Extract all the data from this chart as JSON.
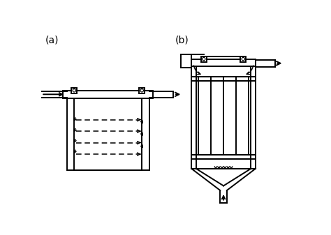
{
  "fig_width": 4.74,
  "fig_height": 3.37,
  "dpi": 100,
  "bg_color": "#ffffff",
  "line_color": "#000000",
  "label_a": "(a)",
  "label_b": "(b)"
}
